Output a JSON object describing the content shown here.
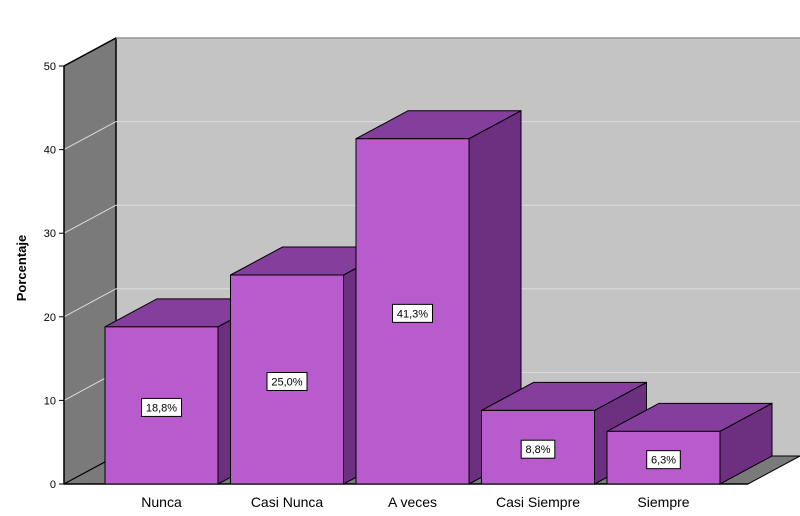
{
  "chart_data": {
    "type": "bar",
    "style": "3d",
    "categories": [
      "Nunca",
      "Casi Nunca",
      "A veces",
      "Casi Siempre",
      "Siempre"
    ],
    "values": [
      18.8,
      25.0,
      41.3,
      8.8,
      6.3
    ],
    "data_labels": [
      "18,8%",
      "25,0%",
      "41,3%",
      "8,8%",
      "6,3%"
    ],
    "title": "",
    "xlabel": "",
    "ylabel": "Porcentaje",
    "ylim": [
      0,
      50
    ],
    "yticks": [
      "0",
      "10",
      "20",
      "30",
      "40",
      "50"
    ],
    "grid": true,
    "colors": {
      "bar_front": "#b75bcd",
      "bar_top": "#843e9c",
      "bar_side": "#6d3080",
      "back_wall": "#c4c4c4",
      "side_wall": "#7a7a7a",
      "floor": "#7a7a7a",
      "gridline": "#dcdcdc"
    }
  }
}
